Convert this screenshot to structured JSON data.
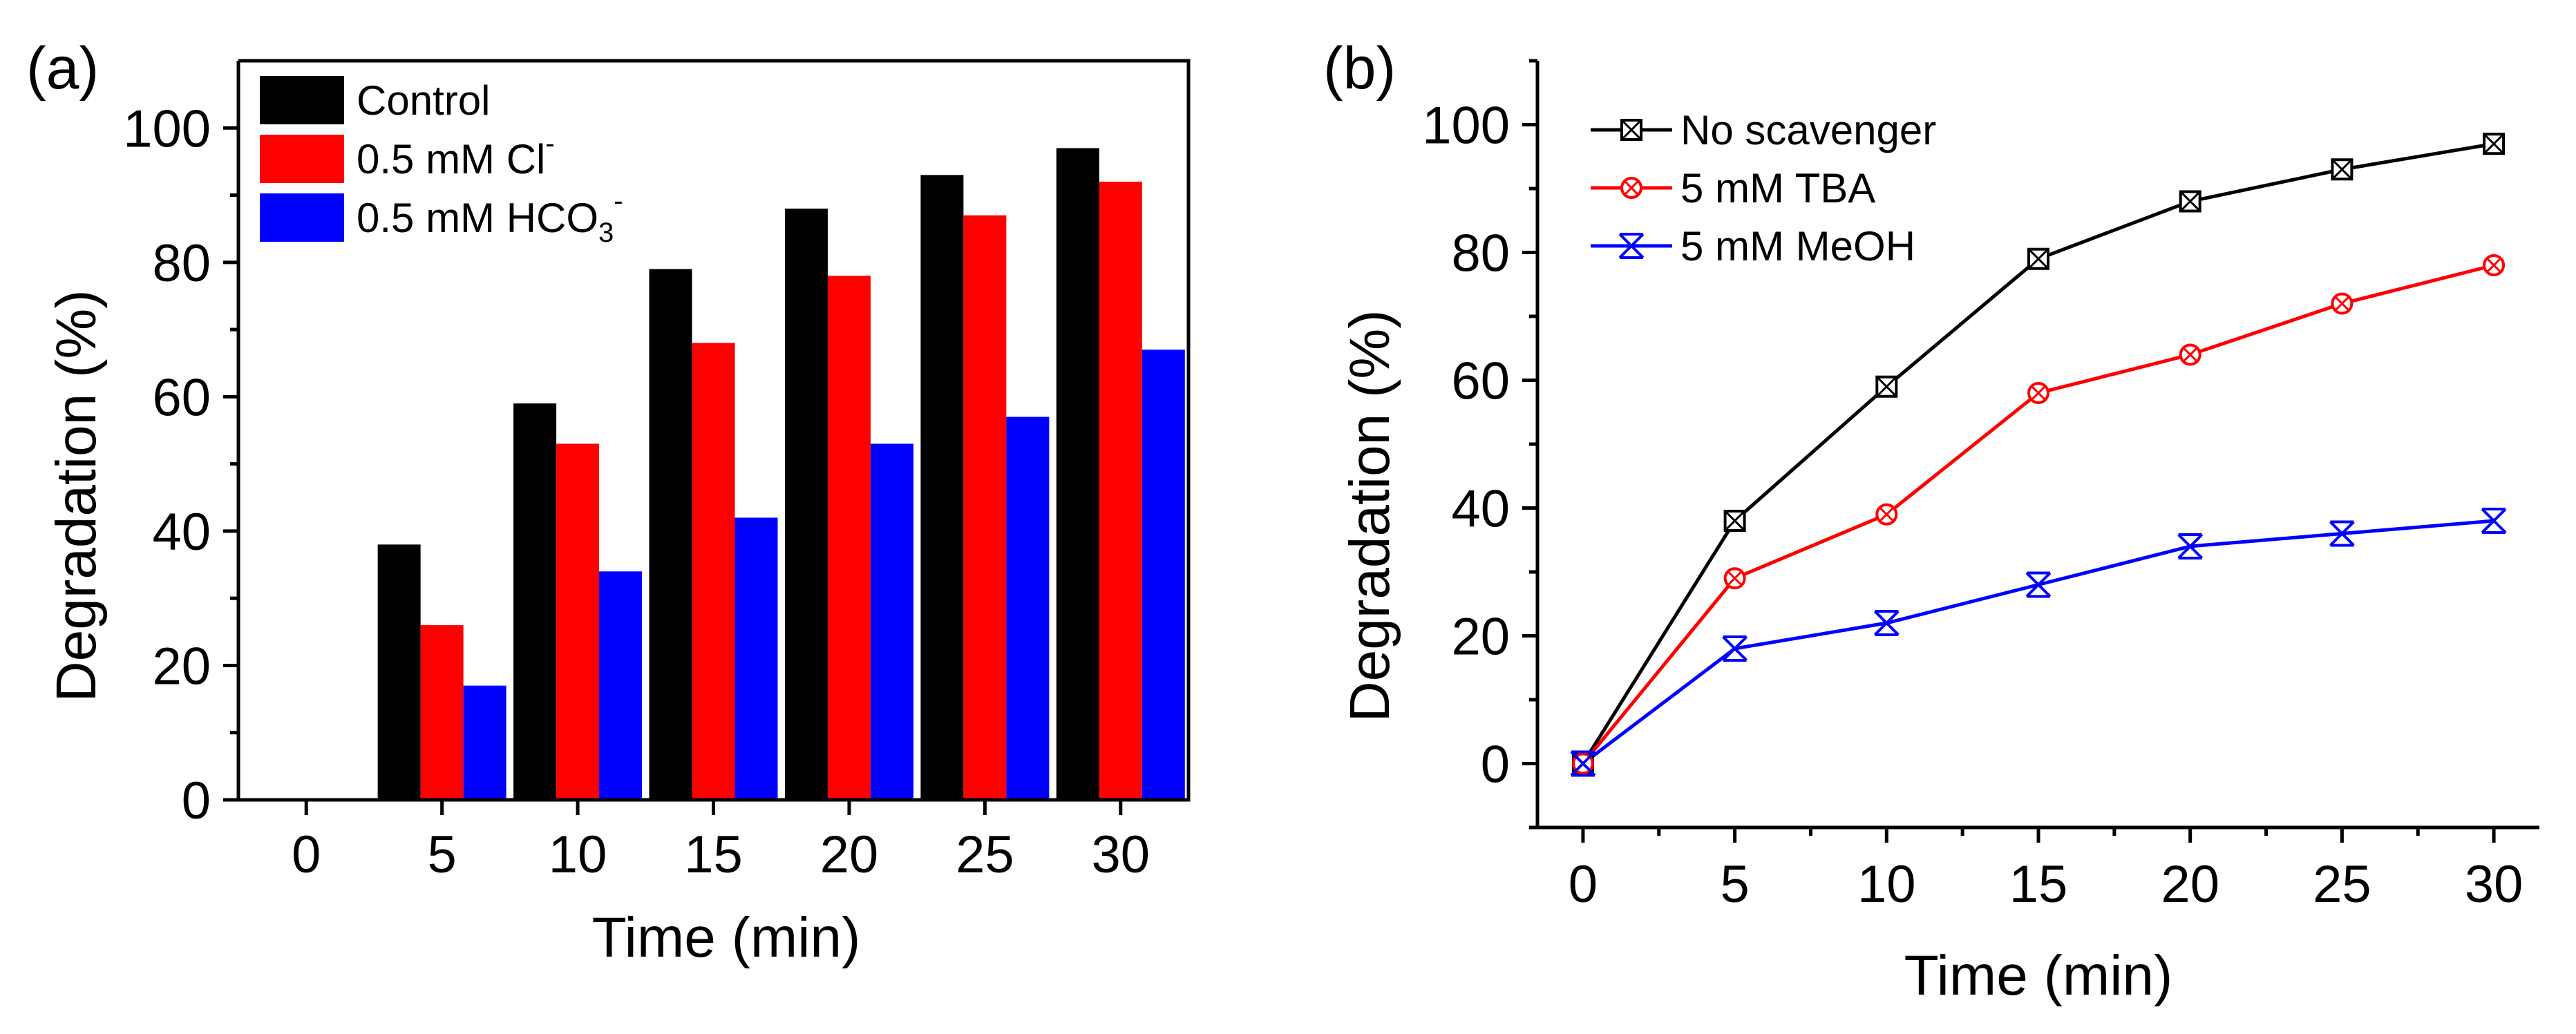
{
  "figure": {
    "panels": [
      "(a)",
      "(b)"
    ]
  },
  "chart_data": [
    {
      "type": "bar",
      "panel": "(a)",
      "title": "",
      "xlabel": "Time (min)",
      "ylabel": "Degradation (%)",
      "ylim": [
        0,
        110
      ],
      "yticks": [
        0,
        20,
        40,
        60,
        80,
        100
      ],
      "categories": [
        "0",
        "5",
        "10",
        "15",
        "20",
        "25",
        "30"
      ],
      "series": [
        {
          "name": "Control",
          "legend": {
            "main": "Control"
          },
          "color": "#000000",
          "values": [
            0,
            38,
            59,
            79,
            88,
            93,
            97
          ]
        },
        {
          "name": "0.5 mM Cl⁻",
          "legend": {
            "main": "0.5 mM Cl",
            "sup": "-"
          },
          "color": "#ff0000",
          "values": [
            0,
            26,
            53,
            68,
            78,
            87,
            92
          ]
        },
        {
          "name": "0.5 mM HCO₃⁻",
          "legend": {
            "main": "0.5 mM HCO",
            "sub": "3",
            "sup": "-"
          },
          "color": "#0000ff",
          "values": [
            0,
            17,
            34,
            42,
            53,
            57,
            67
          ]
        }
      ],
      "legend_position": "top-left"
    },
    {
      "type": "line",
      "panel": "(b)",
      "title": "",
      "xlabel": "Time (min)",
      "ylabel": "Degradation (%)",
      "xlim": [
        -1.5,
        31.5
      ],
      "ylim": [
        -10,
        110
      ],
      "x": [
        0,
        5,
        10,
        15,
        20,
        25,
        30
      ],
      "yticks": [
        0,
        20,
        40,
        60,
        80,
        100
      ],
      "series": [
        {
          "name": "No scavenger",
          "color": "#000000",
          "marker": "square-x",
          "values": [
            0,
            38,
            59,
            79,
            88,
            93,
            97
          ]
        },
        {
          "name": "5 mM TBA",
          "color": "#ff0000",
          "marker": "circle-x",
          "values": [
            0,
            29,
            39,
            58,
            64,
            72,
            78
          ]
        },
        {
          "name": "5 mM MeOH",
          "color": "#0000ff",
          "marker": "star",
          "values": [
            0,
            18,
            22,
            28,
            34,
            36,
            38
          ]
        }
      ],
      "legend_position": "top-left"
    }
  ]
}
